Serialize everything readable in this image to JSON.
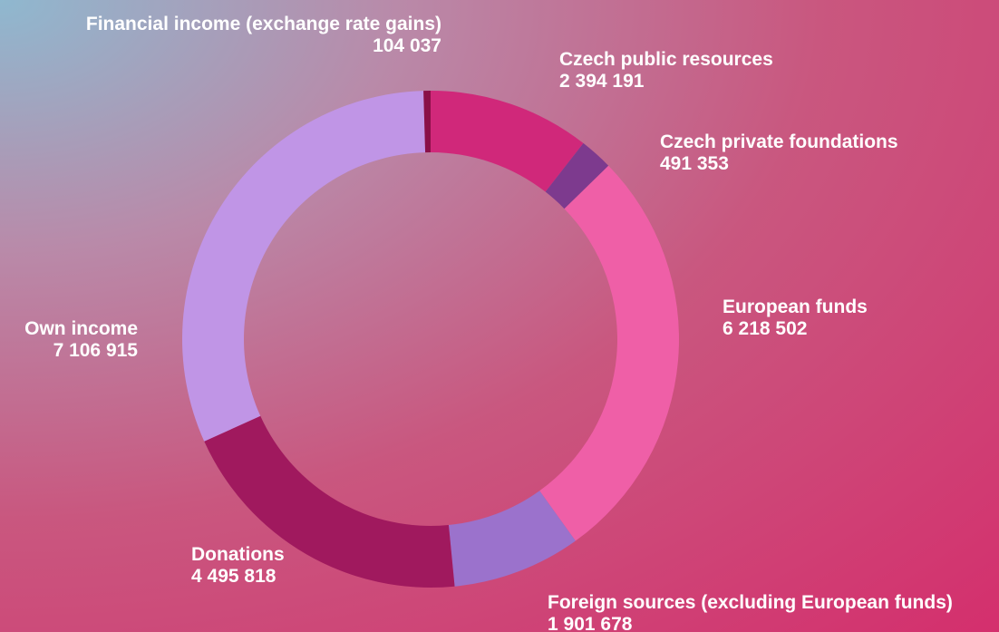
{
  "chart_data": {
    "type": "donut",
    "categories": [
      "Czech public resources",
      "Czech private foundations",
      "European funds",
      "Foreign sources (excluding European funds)",
      "Donations",
      "Own income",
      "Financial income (exchange rate gains)"
    ],
    "values": [
      2394191,
      491353,
      6218502,
      1901678,
      4495818,
      7106915,
      104037
    ],
    "value_labels": [
      "2 394 191",
      "491 353",
      "6 218 502",
      "1 901 678",
      "4 495 818",
      "7 106 915",
      "104 037"
    ],
    "colors": [
      "#d0287a",
      "#7d3a8e",
      "#ef5fa7",
      "#9b72cc",
      "#a0195e",
      "#c095e6",
      "#8a1048"
    ]
  }
}
